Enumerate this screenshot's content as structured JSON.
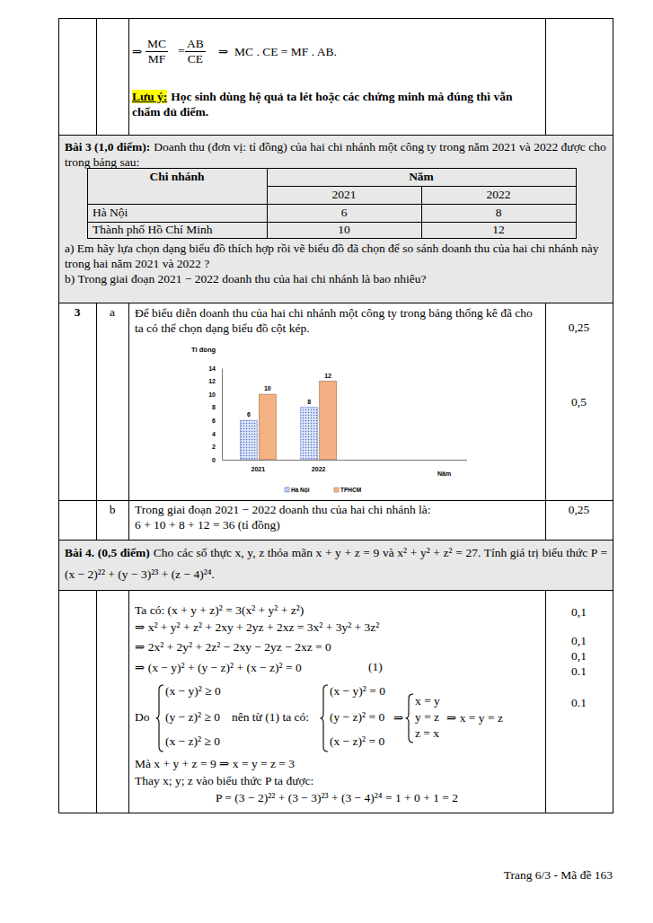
{
  "chart_data": {
    "type": "bar",
    "y_label": "Tỉ đồng",
    "x_label": "Năm",
    "categories": [
      "2021",
      "2022"
    ],
    "series": [
      {
        "name": "Hà Nội",
        "color": "#4a6fd1",
        "values": [
          6,
          8
        ]
      },
      {
        "name": "TPHCM",
        "color": "#f4b183",
        "values": [
          10,
          12
        ]
      }
    ],
    "ylim": [
      0,
      14
    ],
    "yticks": [
      0,
      2,
      4,
      6,
      8,
      10,
      12,
      14
    ],
    "data_labels": true,
    "legend": "bottom",
    "grid": false
  },
  "top_row": {
    "arrow": "⇒",
    "frac1": {
      "num": "MC",
      "den": "MF"
    },
    "equals": "=",
    "frac2": {
      "num": "AB",
      "den": "CE"
    },
    "result": "⇒  MC . CE = MF . AB.",
    "note_label": "Lưu ý:",
    "note_text": "Học sinh dùng hệ quả ta lét hoặc các chứng minh mà đúng thì vẫn chấm đủ điểm."
  },
  "bai3": {
    "label": "Bài 3 (1,0 điểm):",
    "text": "Doanh thu (đơn vị: tỉ đồng) của hai chi nhánh một công ty trong năm 2021 và 2022 được cho trong bảng sau:",
    "table": {
      "header": [
        "Chi nhánh",
        "Năm"
      ],
      "years": [
        "2021",
        "2022"
      ],
      "rows": [
        [
          "Hà Nội",
          "6",
          "8"
        ],
        [
          "Thành phố Hồ Chí Minh",
          "10",
          "12"
        ]
      ]
    },
    "qa": "a) Em hãy lựa chọn dạng biểu đồ thích hợp rồi vẽ biểu đồ đã chọn để so sánh doanh thu của hai chi nhánh này trong hai năm 2021 và 2022 ?",
    "qb": "b) Trong giai đoạn 2021 − 2022 doanh thu của hai chi nhánh là bao nhiêu?"
  },
  "answer3": {
    "number": "3",
    "a": {
      "label": "a",
      "text": "Để biểu diễn doanh thu của hai chi nhánh một công ty trong bảng thống kê đã cho ta có thể chọn dạng biểu đồ cột kép.",
      "scores": [
        "0,25",
        "0,5"
      ]
    },
    "b": {
      "label": "b",
      "text": "Trong giai đoạn 2021 − 2022 doanh thu của hai chi nhánh là:",
      "calc": "6 + 10 + 8 + 12 = 36 (tỉ đồng)",
      "score": "0,25"
    }
  },
  "bai4": {
    "label": "Bài 4. (0,5 điểm)",
    "text": "Cho các số thực x, y, z thỏa mãn x + y + z = 9 và x² + y² + z² = 27. Tính giá trị biểu thức P = (x − 2)²² + (y − 3)²³ + (z − 4)²⁴."
  },
  "solution4": {
    "lines": [
      "Ta có: (x + y + z)² = 3(x² + y² + z²)",
      "⇒ x² + y² + z² + 2xy + 2yz + 2xz = 3x² + 3y² + 3z²",
      "⇒ 2x² + 2y² + 2z² − 2xy − 2yz − 2xz = 0",
      "⇒ (x − y)² + (y − z)² + (x − z)² = 0"
    ],
    "eq_ref": "(1)",
    "do": "Do",
    "sys1": [
      "(x − y)² ≥ 0",
      "(y − z)² ≥ 0",
      "(x − z)² ≥ 0"
    ],
    "mid": "nên từ (1) ta có:",
    "sys2": [
      "(x − y)² = 0",
      "(y − z)² = 0",
      "(x − z)² = 0"
    ],
    "arrow": "⇒",
    "sys3": [
      "x = y",
      "y = z",
      "z = x"
    ],
    "conclusion": "⇒ x = y = z",
    "line5": "Mà x + y + z = 9 ⇒ x = y = z = 3",
    "line6": "Thay x; y; z vào biểu thức P ta được:",
    "final": "P = (3 − 2)²² + (3 − 3)²³ + (3 − 4)²⁴ = 1 + 0 + 1 = 2",
    "scores": [
      "0,1",
      "0,1",
      "0,1",
      "0.1",
      "0.1"
    ]
  },
  "footer": "Trang 6/3 - Mã đề 163"
}
